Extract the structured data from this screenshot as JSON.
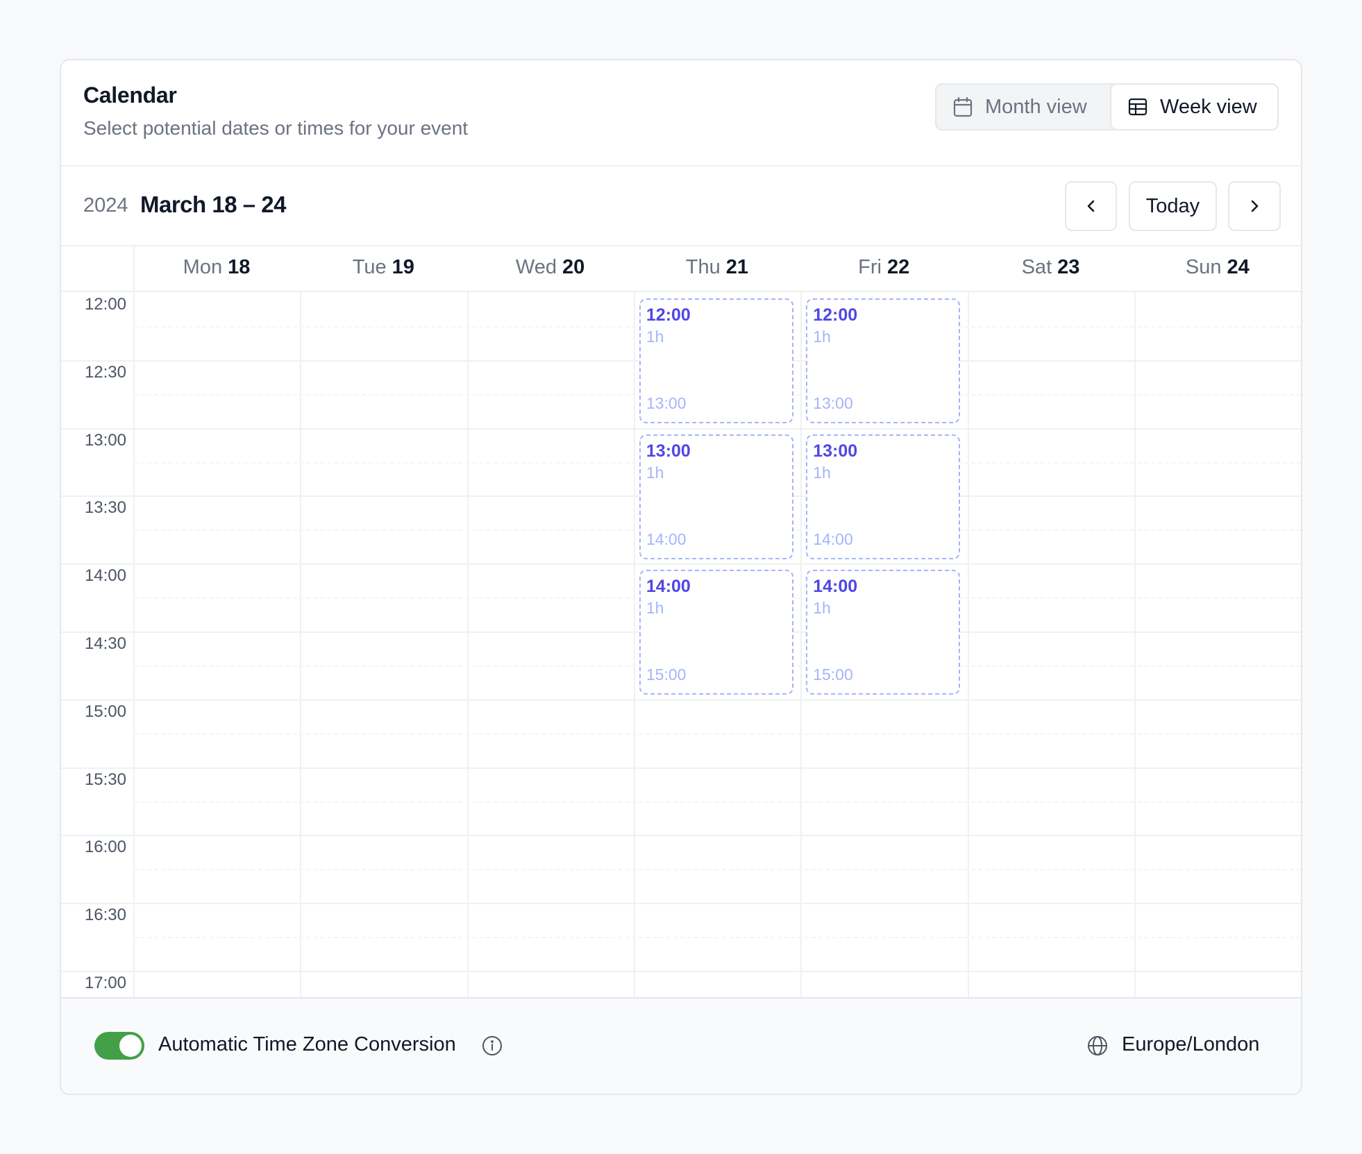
{
  "header": {
    "title": "Calendar",
    "subtitle": "Select potential dates or times for your event",
    "month_view_label": "Month view",
    "week_view_label": "Week view",
    "active_view": "week"
  },
  "toolbar": {
    "year": "2024",
    "range": "March 18 – 24",
    "today_label": "Today"
  },
  "days": [
    {
      "name": "Mon",
      "date": "18"
    },
    {
      "name": "Tue",
      "date": "19"
    },
    {
      "name": "Wed",
      "date": "20"
    },
    {
      "name": "Thu",
      "date": "21"
    },
    {
      "name": "Fri",
      "date": "22"
    },
    {
      "name": "Sat",
      "date": "23"
    },
    {
      "name": "Sun",
      "date": "24"
    }
  ],
  "time_labels": [
    "12:00",
    "12:30",
    "13:00",
    "13:30",
    "14:00",
    "14:30",
    "15:00",
    "15:30",
    "16:00",
    "16:30",
    "17:00"
  ],
  "slots": [
    {
      "day": "Thu",
      "start": "12:00",
      "duration": "1h",
      "end": "13:00"
    },
    {
      "day": "Fri",
      "start": "12:00",
      "duration": "1h",
      "end": "13:00"
    },
    {
      "day": "Thu",
      "start": "13:00",
      "duration": "1h",
      "end": "14:00"
    },
    {
      "day": "Fri",
      "start": "13:00",
      "duration": "1h",
      "end": "14:00"
    },
    {
      "day": "Thu",
      "start": "14:00",
      "duration": "1h",
      "end": "15:00"
    },
    {
      "day": "Fri",
      "start": "14:00",
      "duration": "1h",
      "end": "15:00"
    }
  ],
  "footer": {
    "toggle_label": "Automatic Time Zone Conversion",
    "toggle_on": true,
    "timezone": "Europe/London"
  },
  "colors": {
    "accent": "#4f46e5",
    "slot_border": "#a5b4fc",
    "toggle_on": "#43a047"
  },
  "icons": {
    "month_view": "calendar-icon",
    "week_view": "table-grid-icon",
    "prev": "chevron-left-icon",
    "next": "chevron-right-icon",
    "info": "info-icon",
    "timezone": "globe-icon"
  }
}
